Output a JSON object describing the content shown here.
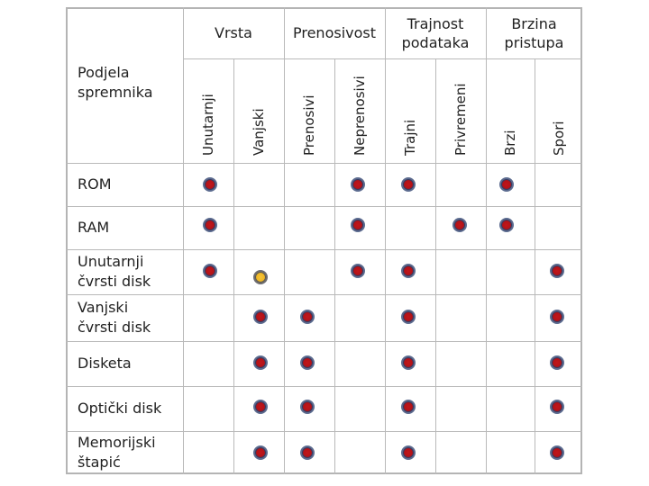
{
  "header": {
    "corner_label": [
      "Podjela",
      "spremnika"
    ],
    "groups": [
      {
        "title": [
          "Vrsta"
        ]
      },
      {
        "title": [
          "Prenosivost"
        ]
      },
      {
        "title": [
          "Trajnost",
          "podataka"
        ]
      },
      {
        "title": [
          "Brzina",
          "pristupa"
        ]
      }
    ],
    "columns": [
      "Unutarnji",
      "Vanjski",
      "Prenosivi",
      "Neprenosivi",
      "Trajni",
      "Privremeni",
      "Brzi",
      "Spori"
    ]
  },
  "rows": [
    {
      "label": [
        "ROM"
      ],
      "marks": [
        "red",
        "",
        "",
        "red",
        "red",
        "",
        "red",
        ""
      ]
    },
    {
      "label": [
        "RAM"
      ],
      "marks": [
        "red",
        "",
        "",
        "red",
        "",
        "red",
        "red",
        ""
      ]
    },
    {
      "label": [
        "Unutarnji",
        "čvrsti disk"
      ],
      "marks": [
        "red",
        "yellow",
        "",
        "red",
        "red",
        "",
        "",
        "red"
      ]
    },
    {
      "label": [
        "Vanjski",
        "čvrsti disk"
      ],
      "marks": [
        "",
        "red",
        "red",
        "",
        "red",
        "",
        "",
        "red"
      ]
    },
    {
      "label": [
        "Disketa"
      ],
      "marks": [
        "",
        "red",
        "red",
        "",
        "red",
        "",
        "",
        "red"
      ]
    },
    {
      "label": [
        "Optički disk"
      ],
      "marks": [
        "",
        "red",
        "red",
        "",
        "red",
        "",
        "",
        "red"
      ]
    },
    {
      "label": [
        "Memorijski",
        "štapić"
      ],
      "marks": [
        "",
        "red",
        "red",
        "",
        "red",
        "",
        "",
        "red"
      ]
    }
  ],
  "colors": {
    "mark_red": "#b01218",
    "mark_yellow": "#eeb522",
    "grid": "#b9b9b9"
  }
}
